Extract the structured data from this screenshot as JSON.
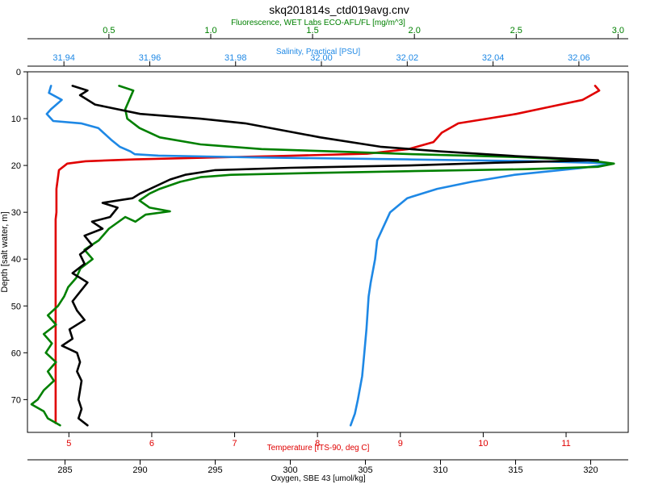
{
  "chart_data": {
    "type": "line",
    "title": "skq201814s_ctd019avg.cnv",
    "y_axis": {
      "label": "Depth [salt water, m]",
      "range": [
        0,
        77
      ],
      "inverted": true,
      "ticks": [
        0,
        10,
        20,
        30,
        40,
        50,
        60,
        70
      ]
    },
    "x_axes": [
      {
        "id": "fluorescence",
        "label": "Fluorescence, WET Labs ECO-AFL/FL [mg/m^3]",
        "position": "top-outer",
        "color": "#008000",
        "range": [
          0.1,
          3.05
        ],
        "ticks": [
          0.5,
          1.0,
          1.5,
          2.0,
          2.5,
          3.0
        ],
        "tick_labels": [
          "0.5",
          "1.0",
          "1.5",
          "2.0",
          "2.5",
          "3.0"
        ]
      },
      {
        "id": "salinity",
        "label": "Salinity, Practical [PSU]",
        "position": "top-inner",
        "color": "#1e88e5",
        "range": [
          31.9315,
          32.0715
        ],
        "ticks": [
          31.94,
          31.96,
          31.98,
          32.0,
          32.02,
          32.04,
          32.06
        ],
        "tick_labels": [
          "31.94",
          "31.96",
          "31.98",
          "32.00",
          "32.02",
          "32.04",
          "32.06"
        ]
      },
      {
        "id": "temperature",
        "label": "Temperature [ITS-90, deg C]",
        "position": "bottom-inner",
        "color": "#e00000",
        "range": [
          4.5,
          11.75
        ],
        "ticks": [
          5,
          6,
          7,
          8,
          9,
          10,
          11
        ],
        "tick_labels": [
          "5",
          "6",
          "7",
          "8",
          "9",
          "10",
          "11"
        ]
      },
      {
        "id": "oxygen",
        "label": "Oxygen, SBE 43 [umol/kg]",
        "position": "bottom-outer",
        "color": "#000000",
        "range": [
          282.5,
          322.5
        ],
        "ticks": [
          285,
          290,
          295,
          300,
          305,
          310,
          315,
          320
        ],
        "tick_labels": [
          "285",
          "290",
          "295",
          "300",
          "305",
          "310",
          "315",
          "320"
        ]
      }
    ],
    "series": [
      {
        "axis": "temperature",
        "color": "#e00000",
        "points": [
          [
            11.35,
            3
          ],
          [
            11.4,
            4
          ],
          [
            11.2,
            6
          ],
          [
            10.8,
            7.5
          ],
          [
            10.4,
            9
          ],
          [
            10.05,
            10
          ],
          [
            9.7,
            11
          ],
          [
            9.5,
            13
          ],
          [
            9.4,
            15
          ],
          [
            9.1,
            16.5
          ],
          [
            8.6,
            17.5
          ],
          [
            7.5,
            18
          ],
          [
            6.5,
            18.4
          ],
          [
            5.8,
            18.7
          ],
          [
            5.2,
            19.1
          ],
          [
            4.98,
            19.6
          ],
          [
            4.88,
            21
          ],
          [
            4.85,
            25
          ],
          [
            4.85,
            30
          ],
          [
            4.84,
            31.5
          ],
          [
            4.84,
            40
          ],
          [
            4.84,
            50
          ],
          [
            4.84,
            60
          ],
          [
            4.84,
            70
          ],
          [
            4.84,
            75
          ]
        ]
      },
      {
        "axis": "salinity",
        "color": "#1e88e5",
        "points": [
          [
            31.937,
            3
          ],
          [
            31.9365,
            4.5
          ],
          [
            31.9395,
            6
          ],
          [
            31.937,
            8
          ],
          [
            31.936,
            9
          ],
          [
            31.9375,
            10.5
          ],
          [
            31.944,
            11
          ],
          [
            31.948,
            12
          ],
          [
            31.951,
            14.5
          ],
          [
            31.953,
            16
          ],
          [
            31.9555,
            17
          ],
          [
            31.9565,
            17.6
          ],
          [
            31.962,
            17.9
          ],
          [
            31.985,
            18.3
          ],
          [
            32.02,
            18.7
          ],
          [
            32.05,
            19.1
          ],
          [
            32.066,
            19.5
          ],
          [
            32.067,
            19.8
          ],
          [
            32.06,
            20.6
          ],
          [
            32.045,
            22
          ],
          [
            32.035,
            23.5
          ],
          [
            32.027,
            25
          ],
          [
            32.02,
            27
          ],
          [
            32.016,
            30
          ],
          [
            32.0145,
            33
          ],
          [
            32.013,
            36
          ],
          [
            32.0125,
            40
          ],
          [
            32.0115,
            45
          ],
          [
            32.011,
            48
          ],
          [
            32.0105,
            55
          ],
          [
            32.01,
            60
          ],
          [
            32.0095,
            65
          ],
          [
            32.0085,
            70
          ],
          [
            32.0078,
            73
          ],
          [
            32.0068,
            75.5
          ]
        ]
      },
      {
        "axis": "fluorescence",
        "color": "#008000",
        "points": [
          [
            0.55,
            3
          ],
          [
            0.62,
            4
          ],
          [
            0.6,
            6
          ],
          [
            0.58,
            8
          ],
          [
            0.59,
            10
          ],
          [
            0.65,
            12
          ],
          [
            0.75,
            14
          ],
          [
            0.95,
            15.5
          ],
          [
            1.25,
            16.5
          ],
          [
            1.6,
            17
          ],
          [
            2.0,
            17.6
          ],
          [
            2.5,
            18.2
          ],
          [
            2.85,
            18.9
          ],
          [
            2.98,
            19.6
          ],
          [
            2.9,
            20.3
          ],
          [
            2.55,
            20.8
          ],
          [
            2.0,
            21.2
          ],
          [
            1.5,
            21.6
          ],
          [
            1.1,
            22
          ],
          [
            0.95,
            22.5
          ],
          [
            0.85,
            23.5
          ],
          [
            0.75,
            25
          ],
          [
            0.7,
            26
          ],
          [
            0.65,
            27.5
          ],
          [
            0.7,
            29
          ],
          [
            0.8,
            29.8
          ],
          [
            0.68,
            30.5
          ],
          [
            0.63,
            32
          ],
          [
            0.58,
            31
          ],
          [
            0.5,
            33.5
          ],
          [
            0.45,
            36
          ],
          [
            0.38,
            38
          ],
          [
            0.42,
            40
          ],
          [
            0.36,
            42
          ],
          [
            0.34,
            44
          ],
          [
            0.3,
            46
          ],
          [
            0.28,
            48
          ],
          [
            0.25,
            50
          ],
          [
            0.2,
            52
          ],
          [
            0.24,
            54
          ],
          [
            0.18,
            56
          ],
          [
            0.22,
            58
          ],
          [
            0.19,
            60
          ],
          [
            0.24,
            62
          ],
          [
            0.2,
            64
          ],
          [
            0.23,
            66
          ],
          [
            0.18,
            68
          ],
          [
            0.15,
            70
          ],
          [
            0.12,
            71
          ],
          [
            0.18,
            72.5
          ],
          [
            0.2,
            74
          ],
          [
            0.26,
            75.5
          ]
        ]
      },
      {
        "axis": "oxygen",
        "color": "#000000",
        "points": [
          [
            285.5,
            3
          ],
          [
            286.5,
            4
          ],
          [
            286,
            5
          ],
          [
            287,
            7
          ],
          [
            290,
            9
          ],
          [
            294,
            10
          ],
          [
            297,
            11
          ],
          [
            302,
            14
          ],
          [
            306,
            16
          ],
          [
            310,
            17
          ],
          [
            315,
            18
          ],
          [
            320.5,
            18.9
          ],
          [
            314,
            19.4
          ],
          [
            308,
            20
          ],
          [
            300,
            20.5
          ],
          [
            295,
            21
          ],
          [
            293,
            22
          ],
          [
            292,
            23
          ],
          [
            290,
            26
          ],
          [
            289.5,
            27
          ],
          [
            287.5,
            28
          ],
          [
            288.5,
            29
          ],
          [
            288,
            31
          ],
          [
            286.8,
            32
          ],
          [
            287.5,
            33.5
          ],
          [
            286.3,
            35
          ],
          [
            286.8,
            37
          ],
          [
            286,
            39
          ],
          [
            286.3,
            41
          ],
          [
            285.5,
            43
          ],
          [
            286.5,
            45
          ],
          [
            286,
            47
          ],
          [
            285.5,
            49
          ],
          [
            285.8,
            51
          ],
          [
            286.3,
            53
          ],
          [
            285.3,
            55
          ],
          [
            285.5,
            57
          ],
          [
            284.8,
            58.5
          ],
          [
            285.8,
            60
          ],
          [
            286,
            62
          ],
          [
            285.8,
            64
          ],
          [
            286.1,
            66
          ],
          [
            286,
            68
          ],
          [
            285.9,
            70
          ],
          [
            286.1,
            72
          ],
          [
            285.9,
            74
          ],
          [
            286.5,
            75.5
          ]
        ]
      }
    ]
  }
}
